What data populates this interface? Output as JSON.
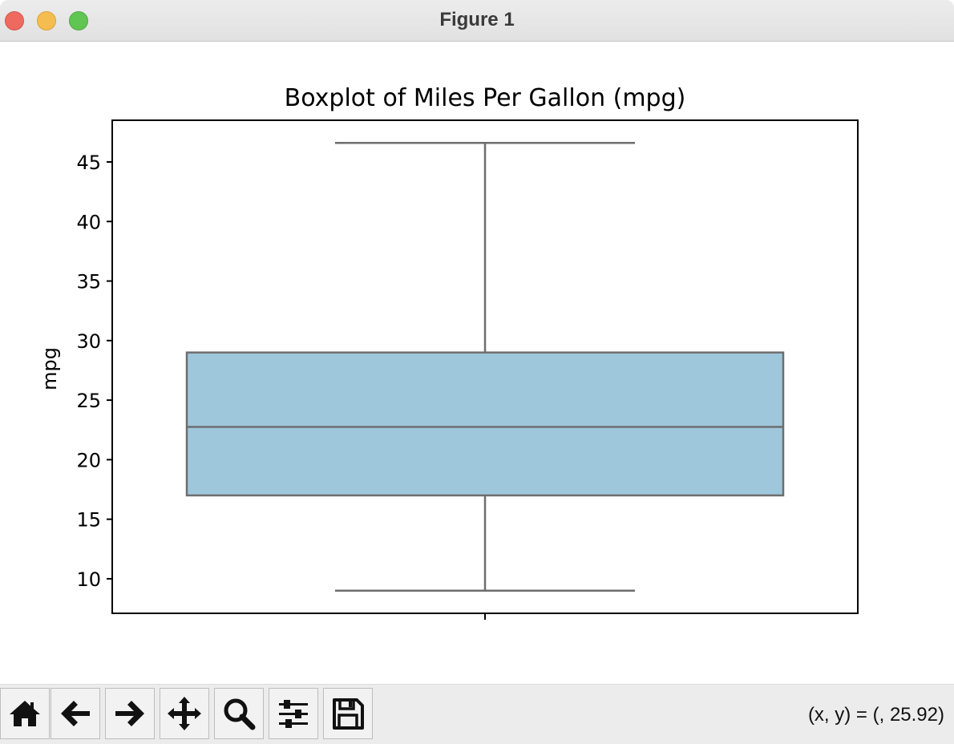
{
  "window": {
    "title": "Figure 1"
  },
  "toolbar": {
    "buttons": [
      {
        "name": "home-icon"
      },
      {
        "name": "back-arrow-icon"
      },
      {
        "name": "forward-arrow-icon"
      },
      {
        "name": "pan-icon"
      },
      {
        "name": "zoom-icon"
      },
      {
        "name": "configure-subplots-icon"
      },
      {
        "name": "save-icon"
      }
    ],
    "coords_text": "(x, y) = (, 25.92)"
  },
  "chart_data": {
    "type": "boxplot",
    "title": "Boxplot of Miles Per Gallon (mpg)",
    "ylabel": "mpg",
    "xlabel": "",
    "ylim": [
      7.1,
      48.5
    ],
    "yticks": [
      10,
      15,
      20,
      25,
      30,
      35,
      40,
      45
    ],
    "box": {
      "whisker_low": 9.0,
      "q1": 17.0,
      "median": 22.75,
      "q3": 29.0,
      "whisker_high": 46.6
    },
    "colors": {
      "box_fill": "#9fc7dc",
      "line": "#6e6e6e"
    }
  }
}
